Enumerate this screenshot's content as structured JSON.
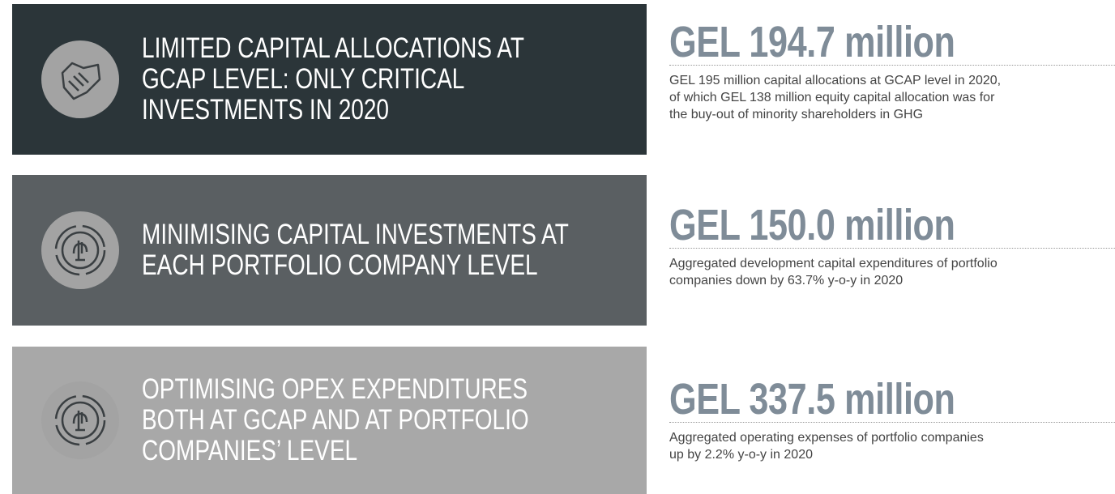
{
  "items": [
    {
      "heading": [
        "LIMITED CAPITAL ALLOCATIONS AT",
        "GCAP LEVEL: ONLY CRITICAL",
        "INVESTMENTS IN 2020"
      ],
      "figure": "GEL 194.7 million",
      "description": [
        "GEL 195 million capital allocations at GCAP level in 2020,",
        "of which GEL 138 million equity capital allocation was for",
        "the buy-out of minority shareholders in GHG"
      ]
    },
    {
      "heading": [
        "MINIMISING CAPITAL INVESTMENTS AT",
        "EACH PORTFOLIO COMPANY LEVEL"
      ],
      "figure": "GEL 150.0 million",
      "description": [
        "Aggregated development capital expenditures of portfolio",
        "companies down by 63.7% y-o-y in 2020"
      ]
    },
    {
      "heading": [
        "OPTIMISING OPEX EXPENDITURES",
        "BOTH AT GCAP AND AT PORTFOLIO",
        "COMPANIES’ LEVEL"
      ],
      "figure": "GEL 337.5 million",
      "description": [
        "Aggregated operating expenses of portfolio companies",
        "up by 2.2% y-o-y in 2020"
      ]
    }
  ]
}
